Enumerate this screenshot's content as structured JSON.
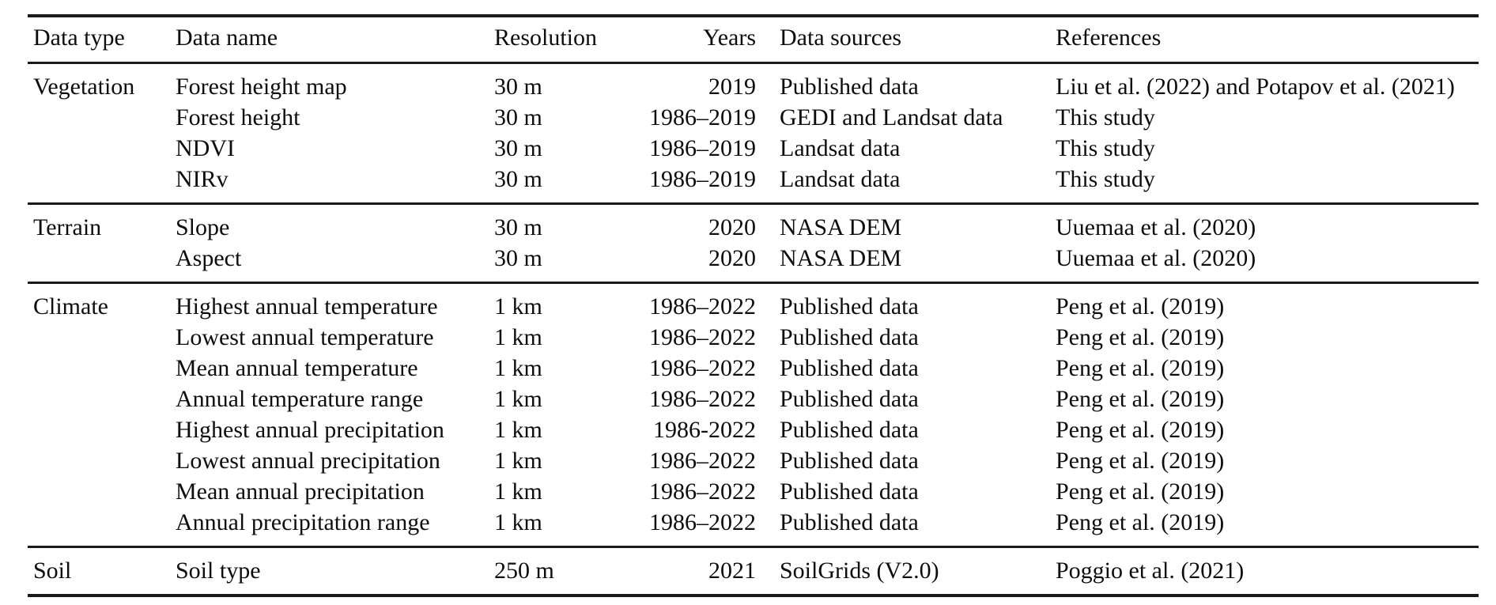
{
  "table": {
    "columns": [
      "Data type",
      "Data name",
      "Resolution",
      "Years",
      "Data sources",
      "References"
    ],
    "sections": [
      {
        "data_type": "Vegetation",
        "rows": [
          {
            "name": "Forest height map",
            "resolution": "30 m",
            "years": "2019",
            "source": "Published data",
            "reference": "Liu et al. (2022) and Potapov et al. (2021)"
          },
          {
            "name": "Forest height",
            "resolution": "30 m",
            "years": "1986–2019",
            "source": "GEDI and Landsat data",
            "reference": "This study"
          },
          {
            "name": "NDVI",
            "resolution": "30 m",
            "years": "1986–2019",
            "source": "Landsat data",
            "reference": "This study"
          },
          {
            "name": "NIRv",
            "resolution": "30 m",
            "years": "1986–2019",
            "source": "Landsat data",
            "reference": "This study"
          }
        ]
      },
      {
        "data_type": "Terrain",
        "rows": [
          {
            "name": "Slope",
            "resolution": "30 m",
            "years": "2020",
            "source": "NASA DEM",
            "reference": "Uuemaa et al. (2020)"
          },
          {
            "name": "Aspect",
            "resolution": "30 m",
            "years": "2020",
            "source": "NASA DEM",
            "reference": "Uuemaa et al. (2020)"
          }
        ]
      },
      {
        "data_type": "Climate",
        "rows": [
          {
            "name": "Highest annual temperature",
            "resolution": "1 km",
            "years": "1986–2022",
            "source": "Published data",
            "reference": "Peng et al. (2019)"
          },
          {
            "name": "Lowest annual temperature",
            "resolution": "1 km",
            "years": "1986–2022",
            "source": "Published data",
            "reference": "Peng et al. (2019)"
          },
          {
            "name": "Mean annual temperature",
            "resolution": "1 km",
            "years": "1986–2022",
            "source": "Published data",
            "reference": "Peng et al. (2019)"
          },
          {
            "name": "Annual temperature range",
            "resolution": "1 km",
            "years": "1986–2022",
            "source": "Published data",
            "reference": "Peng et al. (2019)"
          },
          {
            "name": "Highest annual precipitation",
            "resolution": "1 km",
            "years": "1986-2022",
            "source": "Published data",
            "reference": "Peng et al. (2019)"
          },
          {
            "name": "Lowest annual precipitation",
            "resolution": "1 km",
            "years": "1986–2022",
            "source": "Published data",
            "reference": "Peng et al. (2019)"
          },
          {
            "name": "Mean annual precipitation",
            "resolution": "1 km",
            "years": "1986–2022",
            "source": "Published data",
            "reference": "Peng et al. (2019)"
          },
          {
            "name": "Annual precipitation range",
            "resolution": "1 km",
            "years": "1986–2022",
            "source": "Published data",
            "reference": "Peng et al. (2019)"
          }
        ]
      },
      {
        "data_type": "Soil",
        "rows": [
          {
            "name": "Soil type",
            "resolution": "250 m",
            "years": "2021",
            "source": "SoilGrids (V2.0)",
            "reference": "Poggio et al. (2021)"
          }
        ]
      }
    ]
  }
}
